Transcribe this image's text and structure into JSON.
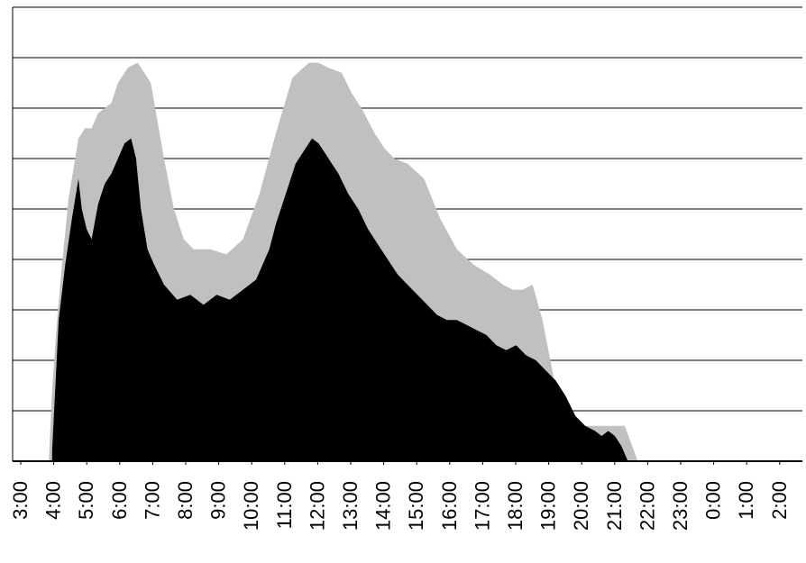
{
  "chart_data": {
    "type": "area",
    "title": "",
    "xlabel": "",
    "ylabel": "",
    "x_ticks": [
      "3:00",
      "4:00",
      "5:00",
      "6:00",
      "7:00",
      "8:00",
      "9:00",
      "10:00",
      "11:00",
      "12:00",
      "13:00",
      "14:00",
      "15:00",
      "16:00",
      "17:00",
      "18:00",
      "19:00",
      "20:00",
      "21:00",
      "22:00",
      "23:00",
      "0:00",
      "1:00",
      "2:00"
    ],
    "x_unit": "hours since 3:00",
    "xlim": [
      0,
      24
    ],
    "ylim": [
      0,
      9
    ],
    "grid": true,
    "legend": "none",
    "series": [
      {
        "color": "#c0c0c0",
        "x": [
          0,
          1.1,
          1.2,
          1.35,
          1.5,
          1.7,
          2.0,
          2.2,
          2.4,
          2.6,
          3.0,
          3.2,
          3.5,
          3.8,
          4.2,
          4.6,
          4.9,
          5.2,
          5.5,
          5.8,
          6.0,
          6.5,
          7.0,
          7.5,
          8.0,
          8.5,
          9.0,
          9.3,
          9.6,
          10.0,
          10.3,
          10.6,
          11.0,
          11.3,
          11.6,
          12.0,
          12.5,
          13.0,
          13.5,
          14.0,
          14.5,
          14.9,
          15.2,
          15.5,
          15.8,
          16.1,
          16.4,
          16.6,
          16.8,
          17.0,
          17.3,
          17.6,
          18.0,
          18.3,
          18.6,
          19.0,
          19.5,
          20.0,
          20.5,
          20.9,
          21.3,
          21.8,
          22.0,
          22.5,
          23.0,
          23.3,
          23.5,
          23.6,
          24
        ],
        "y": [
          0,
          0,
          1.4,
          2.8,
          3.9,
          5.2,
          6.4,
          6.6,
          6.6,
          6.9,
          7.1,
          7.5,
          7.8,
          7.9,
          7.5,
          6.0,
          5.0,
          4.4,
          4.2,
          4.2,
          4.2,
          4.1,
          4.4,
          5.3,
          6.5,
          7.6,
          7.9,
          7.9,
          7.8,
          7.7,
          7.3,
          7.0,
          6.5,
          6.2,
          6.0,
          5.9,
          5.6,
          4.8,
          4.2,
          3.9,
          3.7,
          3.5,
          3.4,
          3.4,
          3.5,
          2.8,
          1.8,
          1.0,
          0.8,
          0.7,
          0.7,
          0.7,
          0.7,
          0.7,
          0.7,
          0.0,
          0.0,
          0.0,
          0.0,
          0.0,
          0.0,
          0.0,
          0.0,
          0.0,
          0.0,
          0.0,
          0.0,
          0.0,
          0.0
        ]
      },
      {
        "color": "#000000",
        "x": [
          1.2,
          1.4,
          1.6,
          1.8,
          2.0,
          2.1,
          2.25,
          2.4,
          2.6,
          2.8,
          3.0,
          3.2,
          3.4,
          3.6,
          3.75,
          3.9,
          4.1,
          4.3,
          4.6,
          5.0,
          5.4,
          5.8,
          6.2,
          6.6,
          7.0,
          7.4,
          7.8,
          8.0,
          8.3,
          8.6,
          8.9,
          9.1,
          9.3,
          9.5,
          9.7,
          9.9,
          10.2,
          10.5,
          10.8,
          11.1,
          11.4,
          11.7,
          12.0,
          12.3,
          12.6,
          12.9,
          13.2,
          13.5,
          13.8,
          14.1,
          14.4,
          14.7,
          15.0,
          15.3,
          15.6,
          15.9,
          16.2,
          16.5,
          16.8,
          17.1,
          17.4,
          17.7,
          17.9,
          18.1,
          18.3,
          18.5,
          18.7,
          18.9
        ],
        "y": [
          0.2,
          2.8,
          3.9,
          4.8,
          5.6,
          5.0,
          4.6,
          4.4,
          5.1,
          5.5,
          5.7,
          6.0,
          6.3,
          6.4,
          6.0,
          5.0,
          4.2,
          3.9,
          3.5,
          3.2,
          3.3,
          3.1,
          3.3,
          3.2,
          3.4,
          3.6,
          4.2,
          4.7,
          5.3,
          5.9,
          6.2,
          6.4,
          6.3,
          6.1,
          5.9,
          5.7,
          5.3,
          5.0,
          4.6,
          4.3,
          4.0,
          3.7,
          3.5,
          3.3,
          3.1,
          2.9,
          2.8,
          2.8,
          2.7,
          2.6,
          2.5,
          2.3,
          2.2,
          2.3,
          2.1,
          2.0,
          1.8,
          1.6,
          1.3,
          0.9,
          0.7,
          0.6,
          0.5,
          0.6,
          0.5,
          0.3,
          0.0,
          0.0
        ]
      }
    ]
  }
}
